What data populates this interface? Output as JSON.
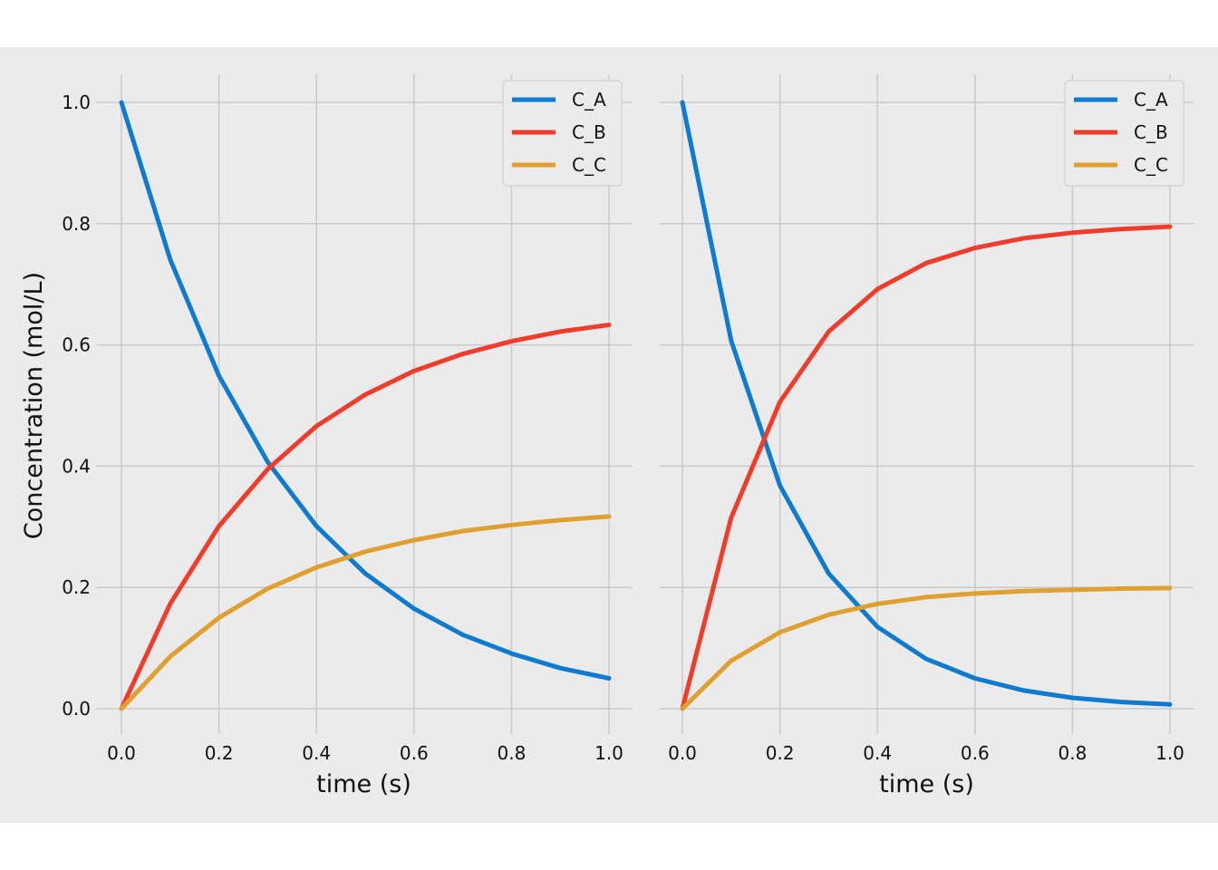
{
  "chart_data": [
    {
      "type": "line",
      "title": "",
      "xlabel": "time (s)",
      "ylabel": "Concentration (mol/L)",
      "xlim": [
        0.0,
        1.0
      ],
      "ylim": [
        0.0,
        1.0
      ],
      "xticks": [
        "0.0",
        "0.2",
        "0.4",
        "0.6",
        "0.8",
        "1.0"
      ],
      "yticks": [
        "0.0",
        "0.2",
        "0.4",
        "0.6",
        "0.8",
        "1.0"
      ],
      "grid": true,
      "legend_position": "top-right",
      "series": [
        {
          "name": "C_A",
          "color": "#0f7bd0",
          "x": [
            0.0,
            0.1,
            0.2,
            0.3,
            0.4,
            0.5,
            0.6,
            0.7,
            0.8,
            0.9,
            1.0
          ],
          "y": [
            1.0,
            0.741,
            0.549,
            0.407,
            0.301,
            0.223,
            0.165,
            0.122,
            0.091,
            0.067,
            0.05
          ]
        },
        {
          "name": "C_B",
          "color": "#f03c2a",
          "x": [
            0.0,
            0.1,
            0.2,
            0.3,
            0.4,
            0.5,
            0.6,
            0.7,
            0.8,
            0.9,
            1.0
          ],
          "y": [
            0.0,
            0.173,
            0.301,
            0.395,
            0.466,
            0.518,
            0.557,
            0.585,
            0.606,
            0.622,
            0.633
          ]
        },
        {
          "name": "C_C",
          "color": "#e0a030",
          "x": [
            0.0,
            0.1,
            0.2,
            0.3,
            0.4,
            0.5,
            0.6,
            0.7,
            0.8,
            0.9,
            1.0
          ],
          "y": [
            0.0,
            0.086,
            0.15,
            0.198,
            0.233,
            0.259,
            0.278,
            0.293,
            0.303,
            0.311,
            0.317
          ]
        }
      ]
    },
    {
      "type": "line",
      "title": "",
      "xlabel": "time (s)",
      "ylabel": "",
      "xlim": [
        0.0,
        1.0
      ],
      "ylim": [
        0.0,
        1.0
      ],
      "xticks": [
        "0.0",
        "0.2",
        "0.4",
        "0.6",
        "0.8",
        "1.0"
      ],
      "yticks": [],
      "grid": true,
      "legend_position": "top-right",
      "series": [
        {
          "name": "C_A",
          "color": "#0f7bd0",
          "x": [
            0.0,
            0.1,
            0.2,
            0.3,
            0.4,
            0.5,
            0.6,
            0.7,
            0.8,
            0.9,
            1.0
          ],
          "y": [
            1.0,
            0.607,
            0.368,
            0.223,
            0.135,
            0.082,
            0.05,
            0.03,
            0.018,
            0.011,
            0.007
          ]
        },
        {
          "name": "C_B",
          "color": "#f03c2a",
          "x": [
            0.0,
            0.1,
            0.2,
            0.3,
            0.4,
            0.5,
            0.6,
            0.7,
            0.8,
            0.9,
            1.0
          ],
          "y": [
            0.0,
            0.315,
            0.506,
            0.622,
            0.692,
            0.735,
            0.76,
            0.776,
            0.785,
            0.791,
            0.795
          ]
        },
        {
          "name": "C_C",
          "color": "#e0a030",
          "x": [
            0.0,
            0.1,
            0.2,
            0.3,
            0.4,
            0.5,
            0.6,
            0.7,
            0.8,
            0.9,
            1.0
          ],
          "y": [
            0.0,
            0.079,
            0.126,
            0.155,
            0.173,
            0.184,
            0.19,
            0.194,
            0.196,
            0.198,
            0.199
          ]
        }
      ]
    }
  ]
}
